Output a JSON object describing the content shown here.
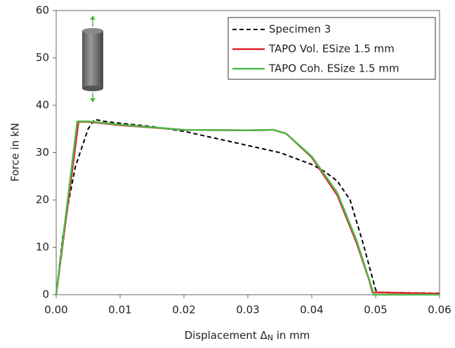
{
  "chart_data": {
    "type": "line",
    "xlabel": [
      "Displacement Δ",
      "N",
      " in mm"
    ],
    "ylabel": "Force in kN",
    "xlim": [
      0,
      0.06
    ],
    "ylim": [
      0,
      60
    ],
    "xticks": [
      {
        "value": 0,
        "label": "0.00"
      },
      0.01,
      0.02,
      0.03,
      0.04,
      0.05,
      0.06
    ],
    "yticks": [
      0,
      10,
      20,
      30,
      40,
      50,
      60
    ],
    "grid": false,
    "legend": "upper right",
    "series": [
      {
        "name": "Specimen 3",
        "color": "#000000",
        "dash": true,
        "x": [
          0,
          0.001,
          0.002,
          0.003,
          0.004,
          0.005,
          0.006,
          0.008,
          0.01,
          0.015,
          0.02,
          0.025,
          0.03,
          0.035,
          0.04,
          0.042,
          0.044,
          0.046,
          0.048,
          0.05,
          0.0505,
          0.06
        ],
        "values": [
          0,
          12,
          20,
          27,
          31,
          35,
          37,
          36.5,
          36.2,
          35.5,
          34.5,
          33,
          31.5,
          30,
          27.5,
          26,
          24,
          20,
          11,
          1,
          0.5,
          0.3
        ]
      },
      {
        "name": "TAPO Vol. ESize 1.5 mm",
        "color": "#e3202a",
        "dash": false,
        "x": [
          0,
          0.0035,
          0.005,
          0.01,
          0.02,
          0.03,
          0.034,
          0.036,
          0.04,
          0.044,
          0.047,
          0.049,
          0.0495,
          0.06
        ],
        "values": [
          0,
          36.5,
          36.5,
          35.8,
          34.8,
          34.7,
          34.8,
          34,
          29,
          21,
          11,
          3,
          0.5,
          0.2
        ]
      },
      {
        "name": "TAPO Coh. ESize 1.5 mm",
        "color": "#4fb848",
        "dash": false,
        "x": [
          0,
          0.0033,
          0.005,
          0.01,
          0.02,
          0.03,
          0.034,
          0.036,
          0.04,
          0.044,
          0.047,
          0.0495,
          0.0497,
          0.06
        ],
        "values": [
          0,
          36.6,
          36.6,
          35.9,
          34.8,
          34.7,
          34.8,
          34,
          29.2,
          21.5,
          11.5,
          1,
          0,
          0
        ]
      }
    ]
  }
}
